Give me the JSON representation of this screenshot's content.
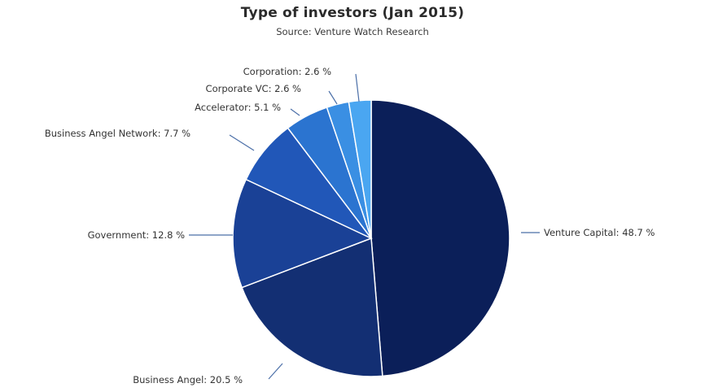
{
  "chart_data": {
    "type": "pie",
    "title": "Type of investors (Jan 2015)",
    "subtitle": "Source: Venture Watch Research",
    "slices": [
      {
        "label": "Venture Capital: 48.7 %",
        "value": 48.7,
        "color": "#0b1f59"
      },
      {
        "label": "Business Angel: 20.5 %",
        "value": 20.5,
        "color": "#132f73"
      },
      {
        "label": "Government: 12.8 %",
        "value": 12.8,
        "color": "#1a4196"
      },
      {
        "label": "Business Angel Network: 7.7 %",
        "value": 7.7,
        "color": "#2157b8"
      },
      {
        "label": "Accelerator: 5.1 %",
        "value": 5.1,
        "color": "#2b74d0"
      },
      {
        "label": "Corporate VC: 2.6 %",
        "value": 2.6,
        "color": "#3a8fe3"
      },
      {
        "label": "Corporation: 2.6 %",
        "value": 2.6,
        "color": "#4aa6f1"
      }
    ],
    "leader_color": "#4b6fa8",
    "label_color": "#333333"
  }
}
